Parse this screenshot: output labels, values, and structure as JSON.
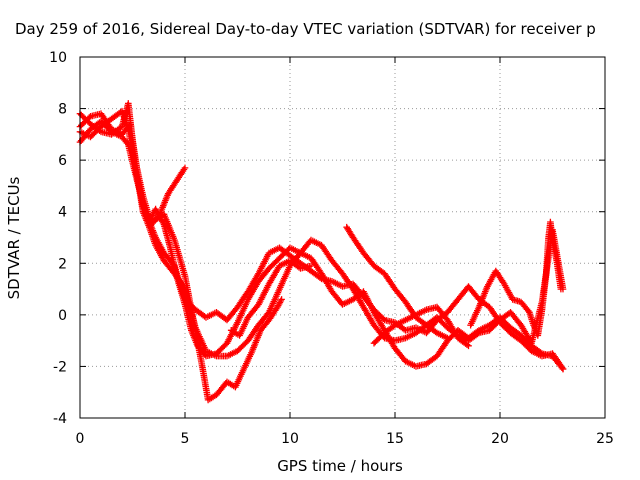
{
  "chart_data": {
    "type": "scatter",
    "title": "Day 259 of 2016, Sidereal Day-to-day VTEC variation (SDTVAR) for receiver p",
    "xlabel": "GPS time / hours",
    "ylabel": "SDTVAR / TECUs",
    "xlim": [
      0,
      25
    ],
    "ylim": [
      -4,
      10
    ],
    "xticks": [
      "0",
      "5",
      "10",
      "15",
      "20",
      "25"
    ],
    "yticks": [
      "-4",
      "-2",
      "0",
      "2",
      "4",
      "6",
      "8",
      "10"
    ],
    "grid": true,
    "marker": "plus",
    "color": "#ff0000",
    "series": [
      {
        "points": [
          [
            0,
            7.8
          ],
          [
            0.5,
            7.4
          ],
          [
            1,
            7.1
          ],
          [
            1.5,
            7.0
          ],
          [
            2,
            7.3
          ],
          [
            2.3,
            8.2
          ],
          [
            2.5,
            6.8
          ],
          [
            2.8,
            5.2
          ],
          [
            3,
            4.2
          ],
          [
            3.3,
            3.6
          ],
          [
            3.6,
            3.0
          ],
          [
            4,
            2.4
          ],
          [
            4.5,
            1.9
          ],
          [
            5,
            0.6
          ],
          [
            5.5,
            0.2
          ],
          [
            6,
            -0.1
          ],
          [
            6.5,
            0.1
          ],
          [
            7,
            -0.2
          ],
          [
            7.5,
            0.3
          ],
          [
            8,
            0.9
          ],
          [
            8.5,
            1.6
          ],
          [
            9,
            2.4
          ],
          [
            9.5,
            2.6
          ],
          [
            10,
            2.3
          ],
          [
            10.5,
            2.0
          ],
          [
            11,
            1.7
          ],
          [
            11.5,
            1.4
          ],
          [
            12,
            1.3
          ],
          [
            12.5,
            1.1
          ],
          [
            13,
            1.2
          ],
          [
            13.5,
            0.7
          ],
          [
            14,
            0.2
          ],
          [
            14.5,
            -0.2
          ],
          [
            15,
            -0.3
          ],
          [
            15.5,
            -0.6
          ],
          [
            16,
            -0.5
          ],
          [
            16.5,
            -0.7
          ],
          [
            17,
            -0.2
          ],
          [
            17.5,
            0.1
          ],
          [
            18,
            0.6
          ],
          [
            18.5,
            1.1
          ],
          [
            19,
            0.6
          ],
          [
            19.5,
            0.3
          ],
          [
            20,
            -0.3
          ],
          [
            20.5,
            -0.7
          ],
          [
            21,
            -1.0
          ],
          [
            21.5,
            -1.4
          ],
          [
            22,
            -1.6
          ],
          [
            22.5,
            -1.5
          ],
          [
            23,
            -2.1
          ]
        ]
      },
      {
        "points": [
          [
            0,
            7.1
          ],
          [
            0.5,
            6.9
          ],
          [
            1,
            7.3
          ],
          [
            1.5,
            7.6
          ],
          [
            2,
            7.9
          ],
          [
            2.3,
            7.2
          ],
          [
            2.5,
            6.3
          ],
          [
            2.8,
            5.0
          ],
          [
            3,
            4.0
          ],
          [
            3.3,
            3.4
          ],
          [
            3.6,
            2.7
          ],
          [
            4,
            2.1
          ],
          [
            4.5,
            1.6
          ],
          [
            5,
            1.0
          ],
          [
            5.5,
            -0.5
          ],
          [
            6,
            -1.4
          ],
          [
            6.5,
            -1.6
          ],
          [
            7,
            -1.6
          ],
          [
            7.5,
            -1.4
          ],
          [
            8,
            -1.0
          ],
          [
            8.5,
            -0.4
          ],
          [
            9,
            0.1
          ],
          [
            9.5,
            1.0
          ],
          [
            10,
            1.9
          ],
          [
            10.5,
            2.4
          ],
          [
            11,
            2.9
          ],
          [
            11.5,
            2.7
          ],
          [
            12,
            2.1
          ],
          [
            12.5,
            1.6
          ],
          [
            13,
            1.0
          ],
          [
            13.5,
            0.3
          ],
          [
            14,
            -0.4
          ],
          [
            14.5,
            -0.9
          ],
          [
            15,
            -1.0
          ],
          [
            15.5,
            -0.9
          ],
          [
            16,
            -0.7
          ],
          [
            16.5,
            -0.4
          ],
          [
            17,
            -0.1
          ],
          [
            17.5,
            -0.5
          ],
          [
            18,
            -0.8
          ],
          [
            18.5,
            -1.0
          ],
          [
            19,
            -0.7
          ],
          [
            19.5,
            -0.6
          ],
          [
            20,
            -0.2
          ],
          [
            20.5,
            0.1
          ],
          [
            21,
            -0.4
          ],
          [
            21.5,
            -1.1
          ],
          [
            22,
            0.5
          ],
          [
            22.5,
            3.3
          ],
          [
            23,
            1.0
          ]
        ]
      },
      {
        "points": [
          [
            0,
            6.7
          ],
          [
            0.5,
            7.2
          ],
          [
            1,
            7.5
          ],
          [
            1.5,
            7.1
          ],
          [
            2,
            6.9
          ],
          [
            2.3,
            6.6
          ],
          [
            2.6,
            5.6
          ],
          [
            3,
            4.3
          ],
          [
            3.3,
            3.6
          ],
          [
            3.6,
            4.1
          ],
          [
            4,
            3.5
          ],
          [
            4.3,
            2.6
          ],
          [
            4.6,
            1.5
          ],
          [
            5,
            0.4
          ],
          [
            5.3,
            -0.6
          ],
          [
            5.6,
            -1.2
          ],
          [
            6,
            -1.6
          ],
          [
            6.5,
            -1.5
          ],
          [
            7,
            -1.1
          ],
          [
            7.5,
            -0.3
          ],
          [
            8,
            0.6
          ],
          [
            8.5,
            1.3
          ],
          [
            9,
            1.8
          ],
          [
            9.5,
            2.2
          ],
          [
            10,
            2.6
          ],
          [
            10.5,
            2.4
          ],
          [
            11,
            2.2
          ],
          [
            11.5,
            1.6
          ],
          [
            12,
            0.9
          ],
          [
            12.5,
            0.4
          ],
          [
            13,
            0.6
          ],
          [
            13.5,
            0.9
          ],
          [
            14,
            0.1
          ],
          [
            14.5,
            -0.6
          ],
          [
            15,
            -1.3
          ],
          [
            15.5,
            -1.8
          ],
          [
            16,
            -2.0
          ],
          [
            16.5,
            -1.9
          ],
          [
            17,
            -1.6
          ],
          [
            17.5,
            -1.0
          ],
          [
            18,
            -0.6
          ],
          [
            18.5,
            -0.9
          ],
          [
            19,
            -0.6
          ],
          [
            19.5,
            -0.4
          ],
          [
            20,
            -0.1
          ],
          [
            20.5,
            -0.5
          ],
          [
            21,
            -0.8
          ],
          [
            21.5,
            -1.2
          ],
          [
            22,
            -1.5
          ],
          [
            22.5,
            -1.6
          ],
          [
            23,
            -2.1
          ]
        ]
      },
      {
        "points": [
          [
            0,
            7.3
          ],
          [
            0.5,
            7.7
          ],
          [
            1,
            7.8
          ],
          [
            1.5,
            7.2
          ],
          [
            2,
            7.0
          ],
          [
            2.4,
            7.4
          ],
          [
            2.6,
            6.1
          ],
          [
            3,
            4.6
          ],
          [
            3.4,
            3.5
          ],
          [
            3.8,
            3.9
          ],
          [
            4.2,
            4.7
          ],
          [
            4.6,
            5.2
          ],
          [
            5,
            5.7
          ]
        ]
      },
      {
        "points": [
          [
            3.6,
            3.7
          ],
          [
            4,
            3.9
          ],
          [
            4.5,
            2.9
          ],
          [
            5,
            1.5
          ],
          [
            5.4,
            -0.2
          ],
          [
            5.8,
            -1.9
          ],
          [
            6.1,
            -3.3
          ],
          [
            6.5,
            -3.1
          ],
          [
            7,
            -2.6
          ],
          [
            7.4,
            -2.8
          ],
          [
            7.8,
            -2.1
          ],
          [
            8.2,
            -1.4
          ],
          [
            8.6,
            -0.6
          ],
          [
            9,
            -0.2
          ],
          [
            9.4,
            0.3
          ],
          [
            9.6,
            0.6
          ]
        ]
      },
      {
        "points": [
          [
            7.2,
            -0.6
          ],
          [
            7.6,
            -0.8
          ],
          [
            8,
            -0.1
          ],
          [
            8.5,
            0.4
          ],
          [
            9,
            1.2
          ],
          [
            9.5,
            1.9
          ],
          [
            10,
            2.1
          ],
          [
            10.5,
            1.8
          ],
          [
            11,
            1.9
          ]
        ]
      },
      {
        "points": [
          [
            12.7,
            3.4
          ],
          [
            13,
            3.0
          ],
          [
            13.5,
            2.4
          ],
          [
            14,
            1.9
          ],
          [
            14.5,
            1.6
          ],
          [
            15,
            1.0
          ],
          [
            15.5,
            0.5
          ],
          [
            16,
            -0.1
          ],
          [
            16.5,
            -0.4
          ],
          [
            17,
            -0.7
          ],
          [
            17.5,
            -0.9
          ]
        ]
      },
      {
        "points": [
          [
            14,
            -1.1
          ],
          [
            14.5,
            -0.7
          ],
          [
            15,
            -0.4
          ],
          [
            15.5,
            -0.2
          ],
          [
            16,
            0.0
          ],
          [
            16.5,
            0.2
          ],
          [
            17,
            0.3
          ],
          [
            17.5,
            -0.2
          ],
          [
            18,
            -0.9
          ],
          [
            18.5,
            -1.2
          ]
        ]
      },
      {
        "points": [
          [
            18.6,
            -0.4
          ],
          [
            19,
            0.3
          ],
          [
            19.4,
            1.1
          ],
          [
            19.8,
            1.7
          ],
          [
            20.2,
            1.2
          ],
          [
            20.6,
            0.6
          ],
          [
            21,
            0.5
          ],
          [
            21.4,
            0.1
          ],
          [
            21.6,
            -0.4
          ],
          [
            21.8,
            -0.8
          ],
          [
            22,
            0.2
          ],
          [
            22.2,
            1.6
          ],
          [
            22.3,
            2.9
          ],
          [
            22.4,
            3.6
          ],
          [
            22.5,
            2.9
          ],
          [
            22.7,
            2.1
          ],
          [
            22.9,
            1.0
          ]
        ]
      }
    ]
  }
}
